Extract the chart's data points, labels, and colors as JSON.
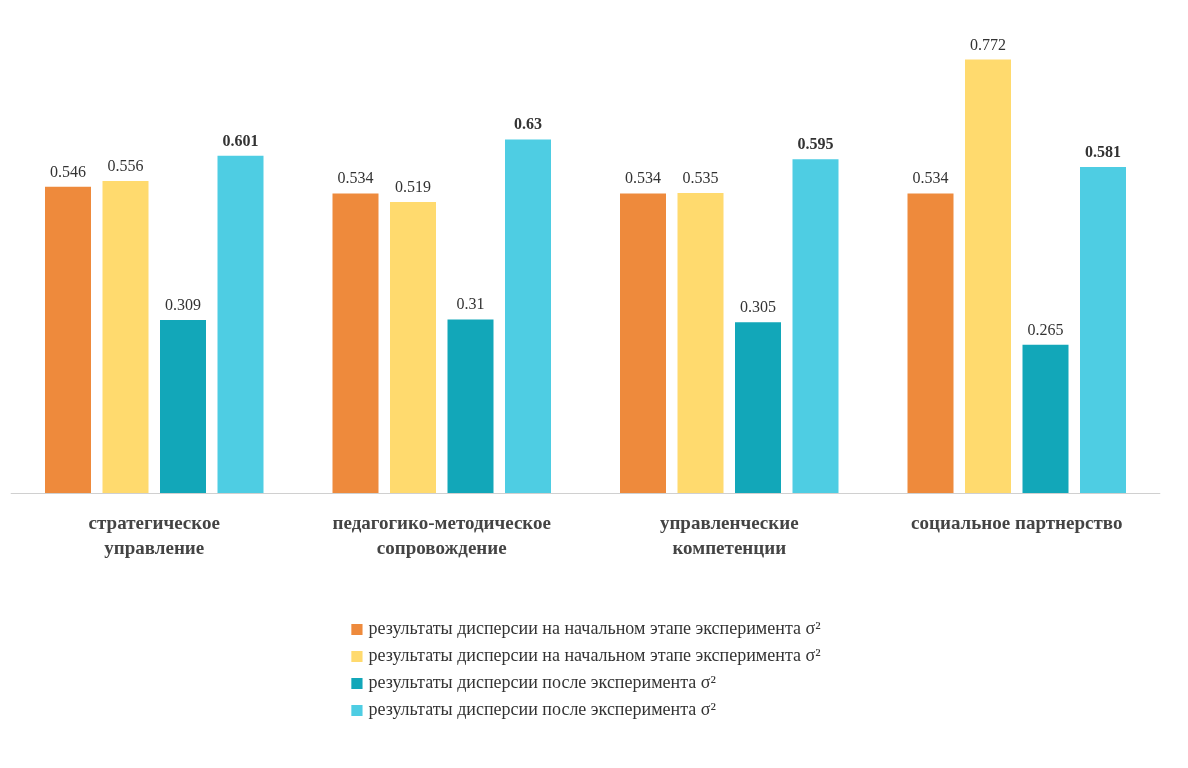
{
  "chart_data": {
    "type": "bar",
    "categories": [
      "стратегическое управление",
      "педагогико-методическое сопровождение",
      "управленческие компетенции",
      "социальное партнерство"
    ],
    "series": [
      {
        "name": "результаты дисперсии на начальном этапе эксперимента σ²",
        "color": "#ee8a3c",
        "values": [
          0.546,
          0.534,
          0.534,
          0.534
        ]
      },
      {
        "name": "результаты дисперсии на начальном этапе эксперимента σ²",
        "color": "#ffda6e",
        "values": [
          0.556,
          0.519,
          0.535,
          0.772
        ]
      },
      {
        "name": "результаты дисперсии после эксперимента σ²",
        "color": "#12a7b9",
        "values": [
          0.309,
          0.31,
          0.305,
          0.265
        ]
      },
      {
        "name": "результаты дисперсии после эксперимента σ²",
        "color": "#4ecde3",
        "values": [
          0.601,
          0.63,
          0.595,
          0.581
        ]
      }
    ],
    "data_labels": true,
    "legend": "bottom"
  }
}
